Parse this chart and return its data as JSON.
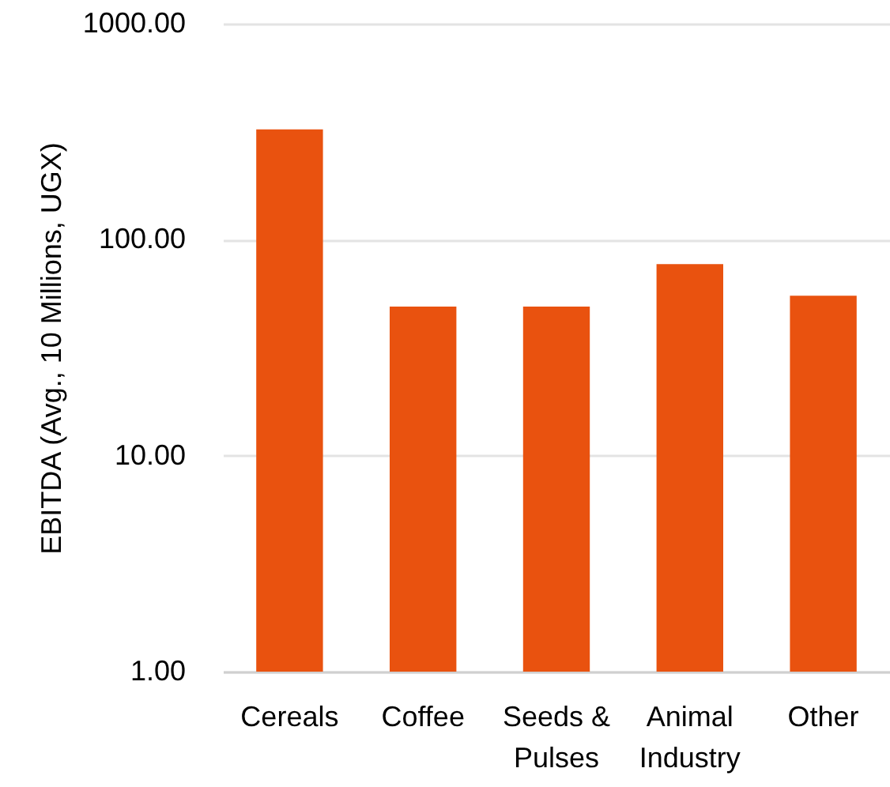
{
  "chart_data": {
    "type": "bar",
    "ylabel": "EBITDA (Avg., 10 Millions, UGX)",
    "categories": [
      "Cereals",
      "Coffee",
      "Seeds & Pulses",
      "Animal Industry",
      "Other"
    ],
    "values": [
      324,
      49,
      49,
      77,
      55
    ],
    "color": "#e9520f",
    "log": true,
    "ylim": [
      1,
      1000
    ],
    "yticks": [
      {
        "value": 1,
        "label": "1.00"
      },
      {
        "value": 10,
        "label": "10.00"
      },
      {
        "value": 100,
        "label": "100.00"
      },
      {
        "value": 1000,
        "label": "1000.00"
      }
    ],
    "grid": "y"
  }
}
